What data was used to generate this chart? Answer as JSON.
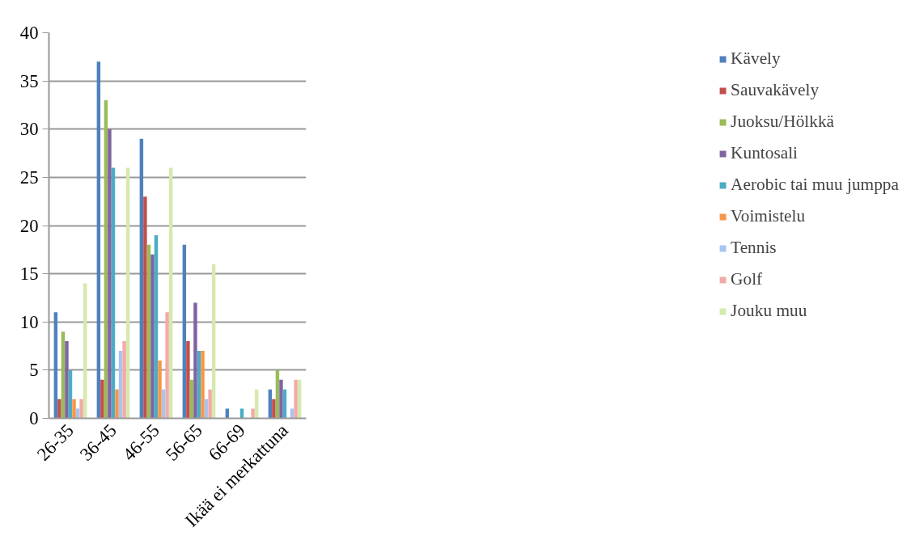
{
  "chart_data": {
    "type": "bar",
    "categories": [
      "26-35",
      "36-45",
      "46-55",
      "56-65",
      "66-69",
      "Ikää ei merkattuna"
    ],
    "series": [
      {
        "name": "Kävely",
        "color": "#4f81bd",
        "values": [
          11,
          37,
          29,
          18,
          1,
          3
        ]
      },
      {
        "name": "Sauvakävely",
        "color": "#c0504d",
        "values": [
          2,
          4,
          23,
          8,
          0,
          2
        ]
      },
      {
        "name": "Juoksu/Hölkkä",
        "color": "#9bbb59",
        "values": [
          9,
          33,
          18,
          4,
          0,
          5
        ]
      },
      {
        "name": "Kuntosali",
        "color": "#8064a2",
        "values": [
          8,
          30,
          17,
          12,
          0,
          4
        ]
      },
      {
        "name": "Aerobic tai muu jumppa",
        "color": "#4bacc6",
        "values": [
          5,
          26,
          19,
          7,
          1,
          3
        ]
      },
      {
        "name": "Voimistelu",
        "color": "#f79646",
        "values": [
          2,
          3,
          6,
          7,
          0,
          0
        ]
      },
      {
        "name": "Tennis",
        "color": "#a9c4ef",
        "values": [
          1,
          7,
          3,
          2,
          0,
          1
        ]
      },
      {
        "name": "Golf",
        "color": "#f2aaa8",
        "values": [
          2,
          8,
          11,
          3,
          1,
          4
        ]
      },
      {
        "name": "Jouku muu",
        "color": "#d6e9ae",
        "values": [
          14,
          26,
          26,
          16,
          3,
          4
        ]
      }
    ],
    "ylim": [
      0,
      40
    ],
    "yticks": [
      0,
      5,
      10,
      15,
      20,
      25,
      30,
      35,
      40
    ],
    "grid": "y",
    "legend": "right"
  }
}
